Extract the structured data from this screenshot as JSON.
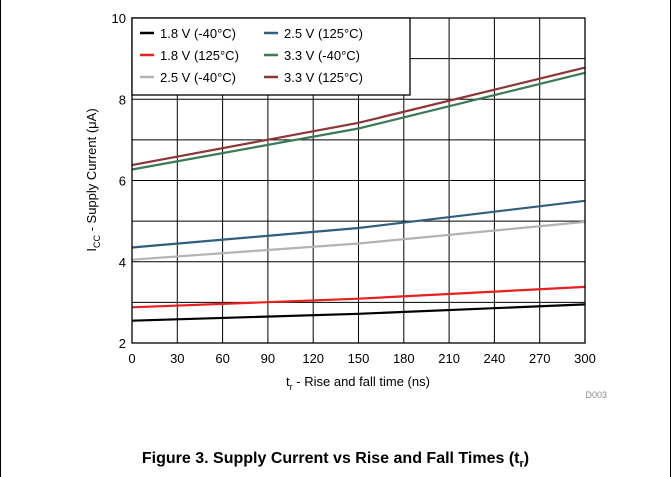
{
  "chart_data": {
    "type": "line",
    "xlabel": {
      "main": "t",
      "sub": "r",
      "rest": " - Rise and fall time (ns)"
    },
    "ylabel": {
      "main": "I",
      "sub": "CC",
      "rest": " - Supply Current (μA)"
    },
    "xlim": [
      0,
      300
    ],
    "ylim": [
      2,
      10
    ],
    "xticks": [
      0,
      30,
      60,
      90,
      120,
      150,
      180,
      210,
      240,
      270,
      300
    ],
    "yticks": [
      2,
      4,
      6,
      8,
      10
    ],
    "grid": true,
    "legend_position": "top-left",
    "source_id": "D003",
    "series": [
      {
        "name": "1.8 V (-40°C)",
        "color": "#000000",
        "x": [
          0,
          150,
          300
        ],
        "y": [
          2.55,
          2.72,
          2.95
        ]
      },
      {
        "name": "1.8 V (125°C)",
        "color": "#e8201f",
        "x": [
          0,
          150,
          300
        ],
        "y": [
          2.88,
          3.09,
          3.38
        ]
      },
      {
        "name": "2.5 V (-40°C)",
        "color": "#b3b3b3",
        "x": [
          0,
          150,
          300
        ],
        "y": [
          4.05,
          4.45,
          4.98
        ]
      },
      {
        "name": "2.5 V (125°C)",
        "color": "#2f5f7d",
        "x": [
          0,
          150,
          300
        ],
        "y": [
          4.35,
          4.83,
          5.5
        ]
      },
      {
        "name": "3.3 V (-40°C)",
        "color": "#3c7a55",
        "x": [
          0,
          150,
          300
        ],
        "y": [
          6.27,
          7.28,
          8.65
        ]
      },
      {
        "name": "3.3 V (125°C)",
        "color": "#8e3535",
        "x": [
          0,
          150,
          300
        ],
        "y": [
          6.38,
          7.42,
          8.78
        ]
      }
    ]
  },
  "caption": {
    "text": "Figure 3. Supply Current vs Rise and Fall Times (t",
    "sub": "r",
    "end": ")"
  }
}
